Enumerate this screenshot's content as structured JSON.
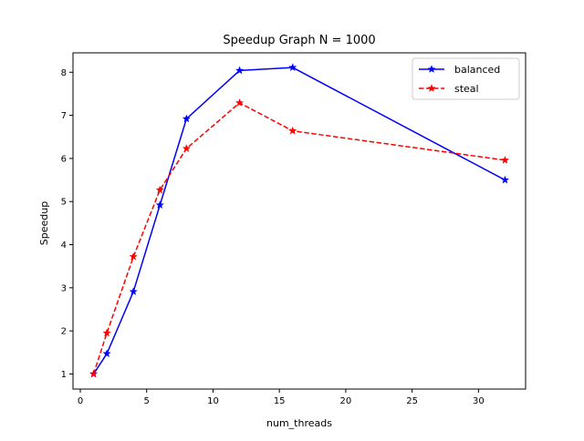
{
  "chart_data": {
    "type": "line",
    "title": "Speedup Graph N = 1000",
    "xlabel": "num_threads",
    "ylabel": "Speedup",
    "xlim": [
      -0.55,
      33.55
    ],
    "ylim": [
      0.65,
      8.45
    ],
    "xticks": [
      0,
      5,
      10,
      15,
      20,
      25,
      30
    ],
    "yticks": [
      1,
      2,
      3,
      4,
      5,
      6,
      7,
      8
    ],
    "grid": false,
    "legend_position": "top-right",
    "series": [
      {
        "name": "balanced",
        "color": "#0000ff",
        "line_style": "solid",
        "marker": "star",
        "x": [
          1,
          2,
          4,
          6,
          8,
          12,
          16,
          32
        ],
        "y": [
          1.0,
          1.47,
          2.91,
          4.92,
          6.92,
          8.04,
          8.11,
          5.5
        ]
      },
      {
        "name": "steal",
        "color": "#ff0000",
        "line_style": "dashed",
        "marker": "star",
        "x": [
          1,
          2,
          4,
          6,
          8,
          12,
          16,
          32
        ],
        "y": [
          1.0,
          1.95,
          3.72,
          5.27,
          6.23,
          7.29,
          6.64,
          5.96
        ]
      }
    ]
  }
}
